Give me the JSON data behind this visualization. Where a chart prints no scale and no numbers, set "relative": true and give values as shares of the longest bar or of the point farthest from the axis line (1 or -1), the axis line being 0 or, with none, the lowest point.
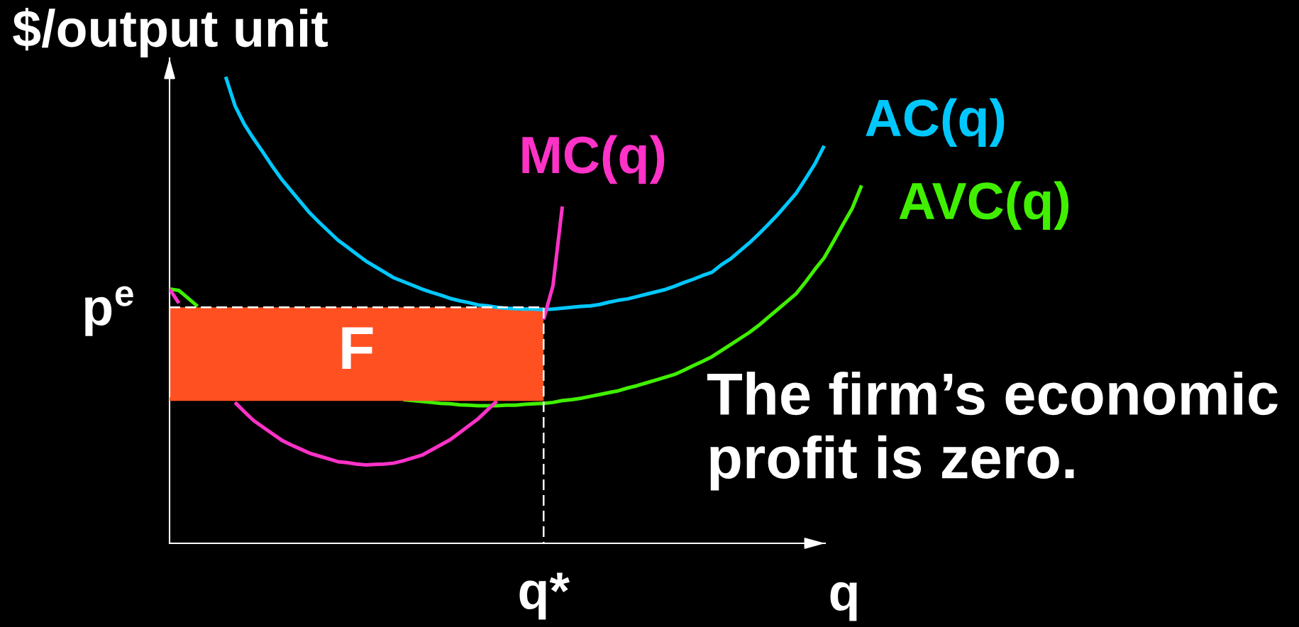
{
  "chart_data": {
    "type": "line",
    "relative": true,
    "ylabel": "$/output unit",
    "xlabel": "q",
    "categories": [
      null,
      null,
      null,
      null,
      null,
      null,
      null,
      null,
      null,
      null,
      null,
      null,
      null,
      null,
      null,
      null,
      null,
      null,
      null,
      null,
      null,
      null,
      null,
      null,
      null,
      null,
      null,
      null,
      null,
      null,
      null,
      null,
      null,
      null,
      null,
      null,
      null,
      null,
      null,
      null,
      null,
      null,
      null,
      null,
      null,
      null,
      null,
      null,
      null,
      null,
      null,
      null,
      null,
      null,
      null,
      null,
      null,
      null,
      null,
      null,
      null,
      null,
      null,
      null,
      null,
      null,
      null,
      null,
      null,
      null,
      null,
      null,
      null,
      null,
      null
    ],
    "series": [
      {
        "name": "AC(q)",
        "color": "#00c8ff",
        "values": [
          null,
          null,
          null,
          null,
          null,
          null,
          1.0,
          0.938,
          0.898,
          0.867,
          0.838,
          0.808,
          0.78,
          0.756,
          0.732,
          0.708,
          0.688,
          0.669,
          0.65,
          0.635,
          0.62,
          0.605,
          0.593,
          0.581,
          0.569,
          0.561,
          0.553,
          0.545,
          0.538,
          0.532,
          0.525,
          0.52,
          0.516,
          0.511,
          0.509,
          0.506,
          0.504,
          0.503,
          0.502,
          0.502,
          0.501,
          0.502,
          0.504,
          0.506,
          0.508,
          0.509,
          0.512,
          0.517,
          0.521,
          0.524,
          0.529,
          0.534,
          0.539,
          0.544,
          0.551,
          0.559,
          0.566,
          0.574,
          0.581,
          0.597,
          0.61,
          0.627,
          0.644,
          0.663,
          0.683,
          0.704,
          0.727,
          0.75,
          0.781,
          0.813,
          0.852,
          null,
          null,
          null,
          null
        ]
      },
      {
        "name": "AVC(q)",
        "color": "#40f000",
        "values": [
          0.545,
          0.542,
          0.525,
          0.508,
          null,
          null,
          null,
          null,
          null,
          null,
          null,
          null,
          null,
          null,
          null,
          null,
          null,
          null,
          null,
          null,
          null,
          null,
          null,
          null,
          null,
          0.308,
          0.306,
          0.304,
          0.302,
          0.3,
          0.299,
          0.297,
          0.296,
          0.295,
          0.295,
          0.295,
          0.296,
          0.296,
          0.298,
          0.299,
          0.3,
          0.302,
          0.306,
          0.308,
          0.311,
          0.315,
          0.319,
          0.323,
          0.327,
          0.333,
          0.338,
          0.344,
          0.35,
          0.356,
          0.362,
          0.371,
          0.381,
          0.39,
          0.4,
          0.413,
          0.426,
          0.439,
          0.452,
          0.467,
          0.484,
          0.501,
          0.518,
          0.535,
          0.56,
          0.587,
          0.612,
          0.647,
          0.683,
          0.718,
          0.767
        ]
      },
      {
        "name": "MC(q)",
        "color": "#ff32c8",
        "values": [
          0.545,
          0.515,
          null,
          null,
          null,
          null,
          null,
          0.302,
          0.282,
          0.263,
          0.249,
          0.235,
          0.221,
          0.211,
          0.202,
          0.193,
          0.187,
          0.181,
          0.175,
          0.173,
          0.17,
          0.168,
          0.169,
          0.17,
          0.172,
          0.177,
          0.183,
          0.189,
          0.2,
          0.211,
          0.222,
          0.237,
          0.252,
          0.267,
          0.286,
          0.305,
          null,
          null,
          null,
          null,
          0.48,
          0.552,
          0.722,
          null,
          null,
          null,
          null,
          null,
          null,
          null,
          null,
          null,
          null,
          null,
          null,
          null,
          null,
          null,
          null,
          null,
          null,
          null,
          null,
          null,
          null,
          null,
          null,
          null,
          null,
          null,
          null,
          null,
          null,
          null,
          null
        ]
      },
      {
        "color": "#ff5022",
        "values": [
          0.309,
          0.309,
          0.309,
          0.309,
          0.309,
          0.309,
          0.309,
          0.309,
          0.309,
          0.309,
          0.309,
          0.309,
          0.309,
          0.309,
          0.309,
          0.309,
          0.309,
          0.309,
          0.309,
          0.309,
          0.309,
          0.309,
          0.309,
          0.309,
          0.309,
          0.309,
          0.309,
          0.309,
          0.309,
          0.309,
          0.309,
          0.309,
          0.309,
          0.309,
          0.309,
          0.309,
          0.309,
          0.309,
          0.309,
          0.309,
          0.309,
          null,
          null,
          null,
          null,
          null,
          null,
          null,
          null,
          null,
          null,
          null,
          null,
          null,
          null,
          null,
          null,
          null,
          null,
          null,
          null,
          null,
          null,
          null,
          null,
          null,
          null,
          null,
          null,
          null,
          null,
          null,
          null,
          null,
          null
        ]
      },
      {
        "name": "F",
        "type": "area",
        "color": "#ff5022",
        "values": [
          0.506,
          0.506,
          0.506,
          0.506,
          0.506,
          0.506,
          0.506,
          0.506,
          0.506,
          0.506,
          0.506,
          0.506,
          0.506,
          0.506,
          0.506,
          0.506,
          0.506,
          0.506,
          0.506,
          0.506,
          0.506,
          0.506,
          0.506,
          0.506,
          0.506,
          0.506,
          0.506,
          0.506,
          0.506,
          0.506,
          0.506,
          0.506,
          0.506,
          0.506,
          0.506,
          0.506,
          0.506,
          0.506,
          0.506,
          0.506,
          0.506,
          null,
          null,
          null,
          null,
          null,
          null,
          null,
          null,
          null,
          null,
          null,
          null,
          null,
          null,
          null,
          null,
          null,
          null,
          null,
          null,
          null,
          null,
          null,
          null,
          null,
          null,
          null,
          null,
          null,
          null,
          null,
          null,
          null,
          null
        ]
      }
    ],
    "annotations": [
      "The firm’s economic profit is zero.",
      "p$^{e}$",
      "q*"
    ]
  }
}
